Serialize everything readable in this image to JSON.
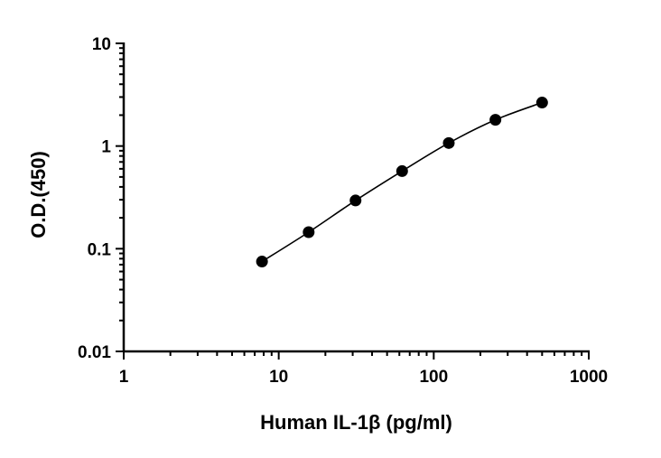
{
  "chart_data": {
    "type": "scatter",
    "title": "",
    "xlabel": "Human IL-1β (pg/ml)",
    "ylabel": "O.D.(450)",
    "x_scale": "log",
    "y_scale": "log",
    "xlim": [
      1,
      1000
    ],
    "ylim": [
      0.01,
      10
    ],
    "x_ticks": [
      {
        "value": 1,
        "label": "1"
      },
      {
        "value": 10,
        "label": "10"
      },
      {
        "value": 100,
        "label": "100"
      },
      {
        "value": 1000,
        "label": "1000"
      }
    ],
    "y_ticks": [
      {
        "value": 0.01,
        "label": "0.01"
      },
      {
        "value": 0.1,
        "label": "0.1"
      },
      {
        "value": 1,
        "label": "1"
      },
      {
        "value": 10,
        "label": "10"
      }
    ],
    "grid": false,
    "legend": "none",
    "series": [
      {
        "color": "#000000",
        "points": [
          {
            "x": 7.8,
            "y": 0.075
          },
          {
            "x": 15.6,
            "y": 0.145
          },
          {
            "x": 31.3,
            "y": 0.295
          },
          {
            "x": 62.5,
            "y": 0.57
          },
          {
            "x": 125,
            "y": 1.07
          },
          {
            "x": 250,
            "y": 1.8
          },
          {
            "x": 500,
            "y": 2.65
          }
        ],
        "fit_curve": true
      }
    ]
  }
}
